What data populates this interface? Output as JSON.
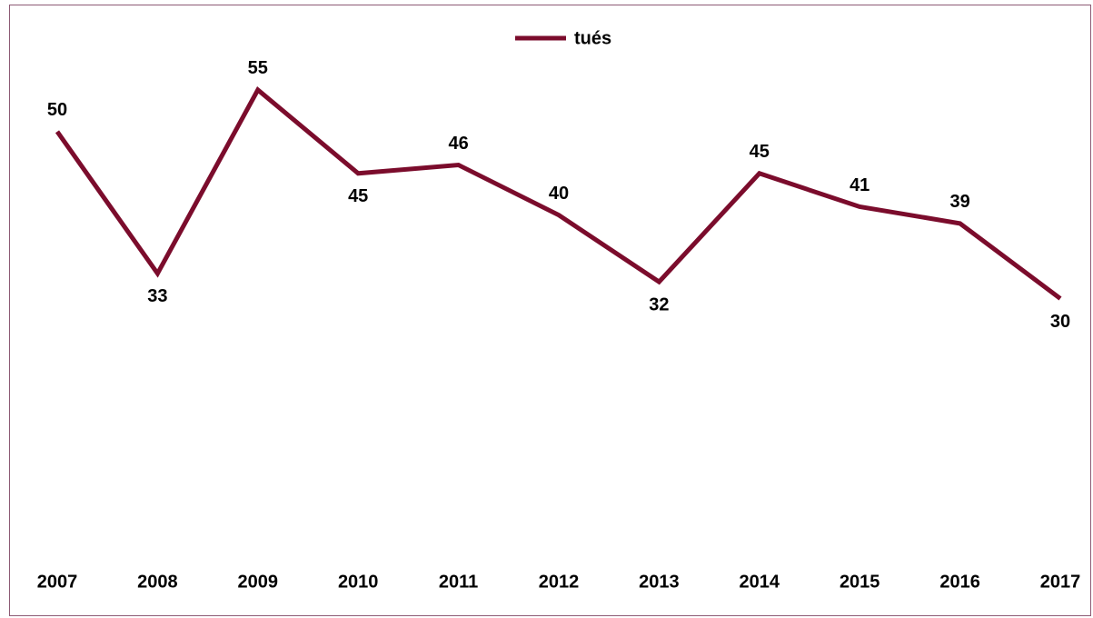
{
  "chart_data": {
    "type": "line",
    "categories": [
      "2007",
      "2008",
      "2009",
      "2010",
      "2011",
      "2012",
      "2013",
      "2014",
      "2015",
      "2016",
      "2017"
    ],
    "series": [
      {
        "name": "tués",
        "color": "#7b0c2c",
        "values": [
          50,
          33,
          55,
          45,
          46,
          40,
          32,
          45,
          41,
          39,
          30
        ]
      }
    ],
    "ylim": [
      0,
      60
    ],
    "legend": "top"
  }
}
